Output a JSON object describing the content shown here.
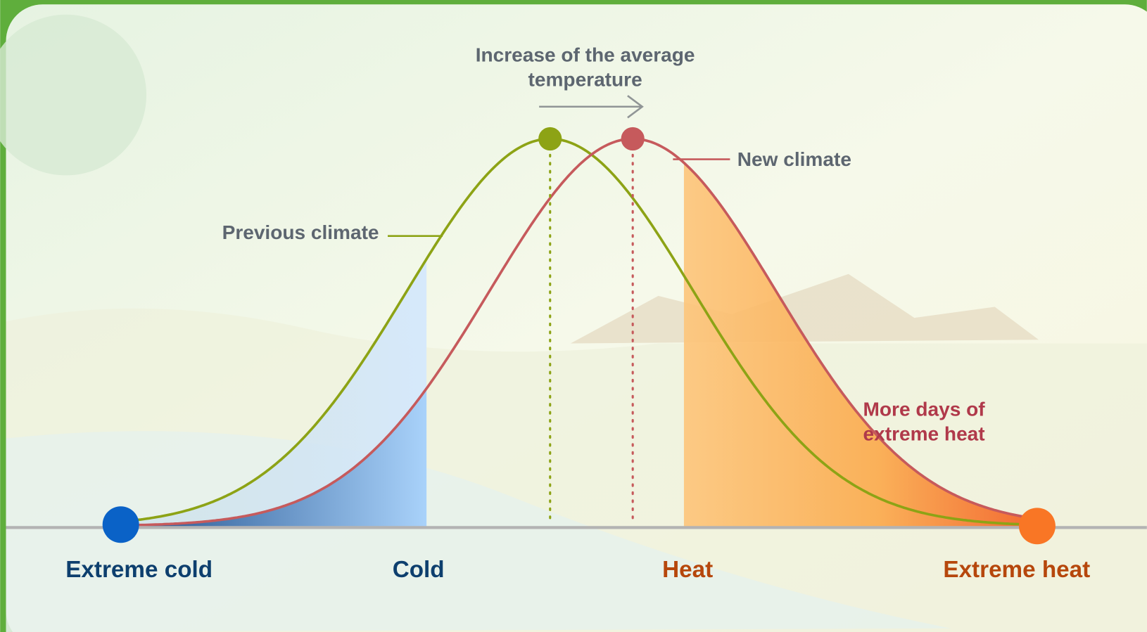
{
  "increase_label": [
    "Increase of the average",
    "temperature"
  ],
  "new_climate": "New climate",
  "previous_climate": "Previous climate",
  "extreme_heat_note": [
    "More days of",
    "extreme heat"
  ],
  "axis_labels": [
    "Extreme cold",
    "Cold",
    "Heat",
    "Extreme heat"
  ]
}
